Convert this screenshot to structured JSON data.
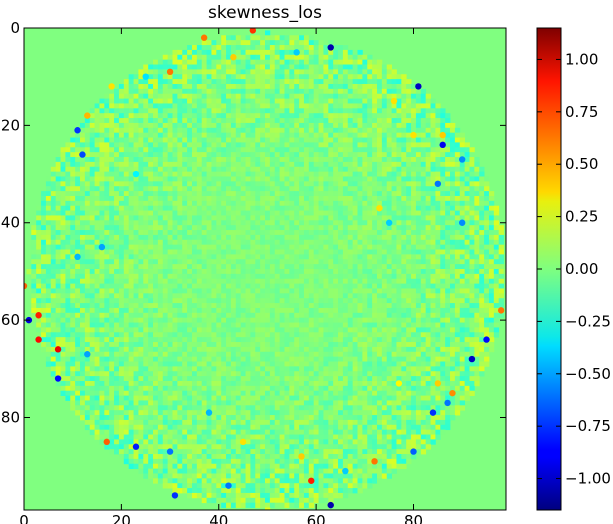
{
  "chart_data": {
    "type": "heatmap",
    "title": "skewness_los",
    "xlabel": "",
    "ylabel": "",
    "grid": false,
    "x_range": [
      0,
      99
    ],
    "y_range": [
      0,
      99
    ],
    "y_inverted": true,
    "x_ticks": [
      0,
      20,
      40,
      60,
      80
    ],
    "y_ticks": [
      0,
      20,
      40,
      60,
      80
    ],
    "colormap": "jet",
    "background_value": 0.0,
    "disk": {
      "center": [
        50,
        50
      ],
      "radius": 49
    },
    "colorbar": {
      "min": -1.15,
      "max": 1.15,
      "ticks": [
        -1.0,
        -0.75,
        -0.5,
        -0.25,
        0.0,
        0.25,
        0.5,
        0.75,
        1.0
      ],
      "tick_labels": [
        "−1.00",
        "−0.75",
        "−0.50",
        "−0.25",
        "0.00",
        "0.25",
        "0.50",
        "0.75",
        "1.00"
      ]
    },
    "extreme_points": [
      {
        "x": 37,
        "y": 2,
        "value": 0.6
      },
      {
        "x": 47,
        "y": 0.5,
        "value": 0.75
      },
      {
        "x": 63,
        "y": 4,
        "value": -1.05
      },
      {
        "x": 30,
        "y": 9,
        "value": 0.6
      },
      {
        "x": 18,
        "y": 12,
        "value": 0.35
      },
      {
        "x": 13,
        "y": 18,
        "value": 0.45
      },
      {
        "x": 11,
        "y": 21,
        "value": -0.75
      },
      {
        "x": 12,
        "y": 26,
        "value": -0.7
      },
      {
        "x": 81,
        "y": 12,
        "value": -1.0
      },
      {
        "x": 86,
        "y": 22,
        "value": 0.4
      },
      {
        "x": 86,
        "y": 24,
        "value": -0.9
      },
      {
        "x": 90,
        "y": 27,
        "value": -0.55
      },
      {
        "x": 85,
        "y": 32,
        "value": -0.6
      },
      {
        "x": 73,
        "y": 37,
        "value": 0.35
      },
      {
        "x": 90,
        "y": 40,
        "value": -0.55
      },
      {
        "x": 16,
        "y": 45,
        "value": -0.5
      },
      {
        "x": 11,
        "y": 47,
        "value": -0.45
      },
      {
        "x": 0,
        "y": 53,
        "value": 0.65
      },
      {
        "x": 3,
        "y": 59,
        "value": 0.8
      },
      {
        "x": 1,
        "y": 60,
        "value": -0.95
      },
      {
        "x": 3,
        "y": 64,
        "value": 0.85
      },
      {
        "x": 7,
        "y": 66,
        "value": 0.9
      },
      {
        "x": 7,
        "y": 72,
        "value": -0.85
      },
      {
        "x": 13,
        "y": 67,
        "value": -0.5
      },
      {
        "x": 98,
        "y": 58,
        "value": 0.6
      },
      {
        "x": 95,
        "y": 64,
        "value": -0.85
      },
      {
        "x": 92,
        "y": 68,
        "value": -1.0
      },
      {
        "x": 88,
        "y": 75,
        "value": 0.55
      },
      {
        "x": 87,
        "y": 77,
        "value": -0.6
      },
      {
        "x": 84,
        "y": 79,
        "value": -0.75
      },
      {
        "x": 85,
        "y": 73,
        "value": 0.4
      },
      {
        "x": 80,
        "y": 87,
        "value": -0.65
      },
      {
        "x": 72,
        "y": 89,
        "value": 0.6
      },
      {
        "x": 17,
        "y": 85,
        "value": 0.65
      },
      {
        "x": 23,
        "y": 86,
        "value": -0.8
      },
      {
        "x": 30,
        "y": 87,
        "value": -0.6
      },
      {
        "x": 31,
        "y": 96,
        "value": -0.75
      },
      {
        "x": 42,
        "y": 94,
        "value": -0.6
      },
      {
        "x": 59,
        "y": 93,
        "value": 0.8
      },
      {
        "x": 63,
        "y": 98,
        "value": -1.05
      },
      {
        "x": 66,
        "y": 91,
        "value": -0.4
      },
      {
        "x": 45,
        "y": 85,
        "value": 0.35
      },
      {
        "x": 38,
        "y": 79,
        "value": -0.45
      },
      {
        "x": 56,
        "y": 5,
        "value": -0.4
      },
      {
        "x": 43,
        "y": 6,
        "value": 0.4
      },
      {
        "x": 25,
        "y": 10,
        "value": -0.35
      },
      {
        "x": 76,
        "y": 15,
        "value": 0.35
      },
      {
        "x": 80,
        "y": 22,
        "value": 0.35
      },
      {
        "x": 75,
        "y": 40,
        "value": -0.4
      },
      {
        "x": 23,
        "y": 30,
        "value": -0.3
      },
      {
        "x": 57,
        "y": 88,
        "value": 0.4
      },
      {
        "x": 77,
        "y": 73,
        "value": 0.3
      }
    ]
  }
}
